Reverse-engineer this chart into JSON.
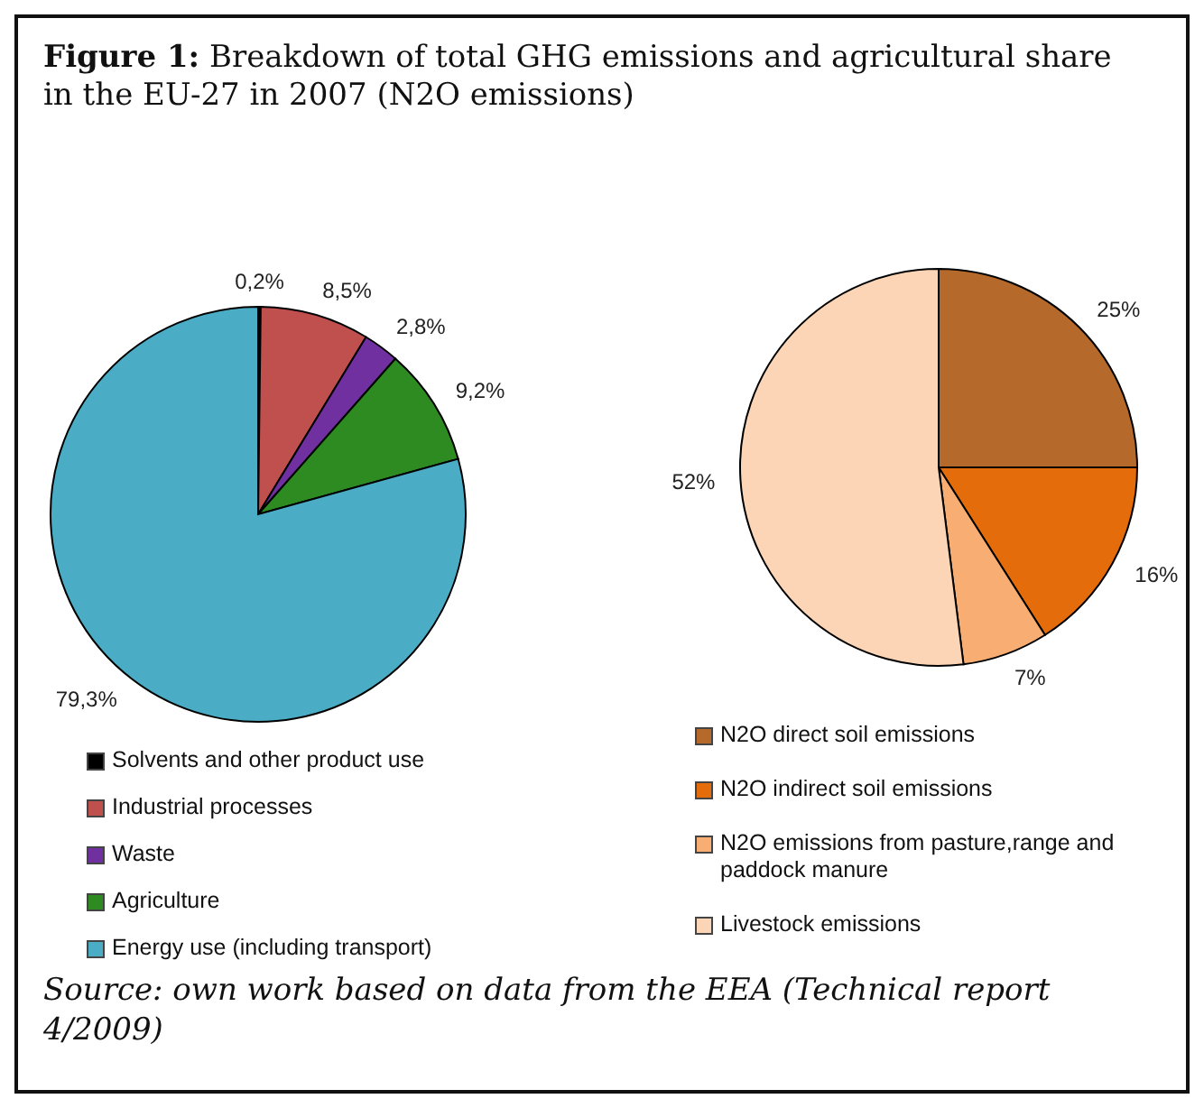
{
  "chart_data": [
    {
      "type": "pie",
      "title": "Figure 1: Breakdown of total GHG emissions and agricultural share in the EU-27 in 2007 (N2O emissions)",
      "categories": [
        "Solvents and other product use",
        "Industrial processes",
        "Waste",
        "Agriculture",
        "Energy use (including transport)"
      ],
      "values": [
        0.2,
        8.5,
        2.8,
        9.2,
        79.3
      ],
      "value_labels": [
        "0,2%",
        "8,5%",
        "2,8%",
        "9,2%",
        "79,3%"
      ],
      "colors": [
        "#000000",
        "#c0504d",
        "#7030a0",
        "#2e8b22",
        "#4bacc6"
      ],
      "legend": "bottom"
    },
    {
      "type": "pie",
      "categories": [
        "N2O direct soil emissions",
        "N2O indirect soil emissions",
        "N2O emissions from pasture,range and paddock manure",
        "Livestock emissions"
      ],
      "values": [
        25,
        16,
        7,
        52
      ],
      "value_labels": [
        "25%",
        "16%",
        "7%",
        "52%"
      ],
      "colors": [
        "#b5692b",
        "#e46c0a",
        "#f8ae72",
        "#fbd5b5"
      ],
      "legend": "bottom",
      "annotations": [
        "Source: own work based on data from the EEA (Technical report 4/2009)"
      ]
    }
  ]
}
